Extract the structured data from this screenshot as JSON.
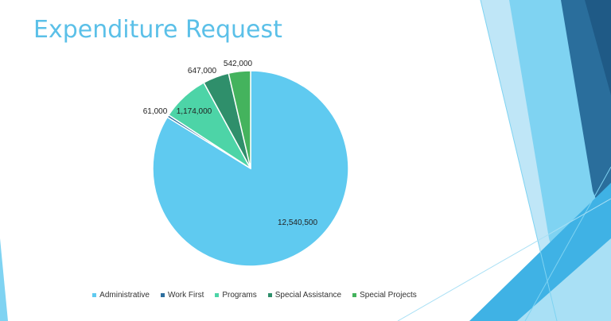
{
  "slide": {
    "title": "Expenditure Request"
  },
  "colors": {
    "title": "#5bc0e8",
    "deco_light": "#7fd3f2",
    "deco_mid": "#3fb2e5",
    "deco_dark": "#2a6e9c",
    "deco_navy": "#1f5a86"
  },
  "chart_data": {
    "type": "pie",
    "title": "",
    "legend_position": "bottom",
    "start_angle_deg": 0,
    "direction": "clockwise",
    "slices": [
      {
        "name": "Administrative",
        "value": 12540500,
        "label": "12,540,500",
        "color": "#5fcaf0"
      },
      {
        "name": "Work First",
        "value": 61000,
        "label": "61,000",
        "color": "#2e6f9e"
      },
      {
        "name": "Programs",
        "value": 1174000,
        "label": "1,174,000",
        "color": "#4dd4a7"
      },
      {
        "name": "Special Assistance",
        "value": 647000,
        "label": "647,000",
        "color": "#2f8f6b"
      },
      {
        "name": "Special Projects",
        "value": 542000,
        "label": "542,000",
        "color": "#44b35d"
      }
    ]
  }
}
